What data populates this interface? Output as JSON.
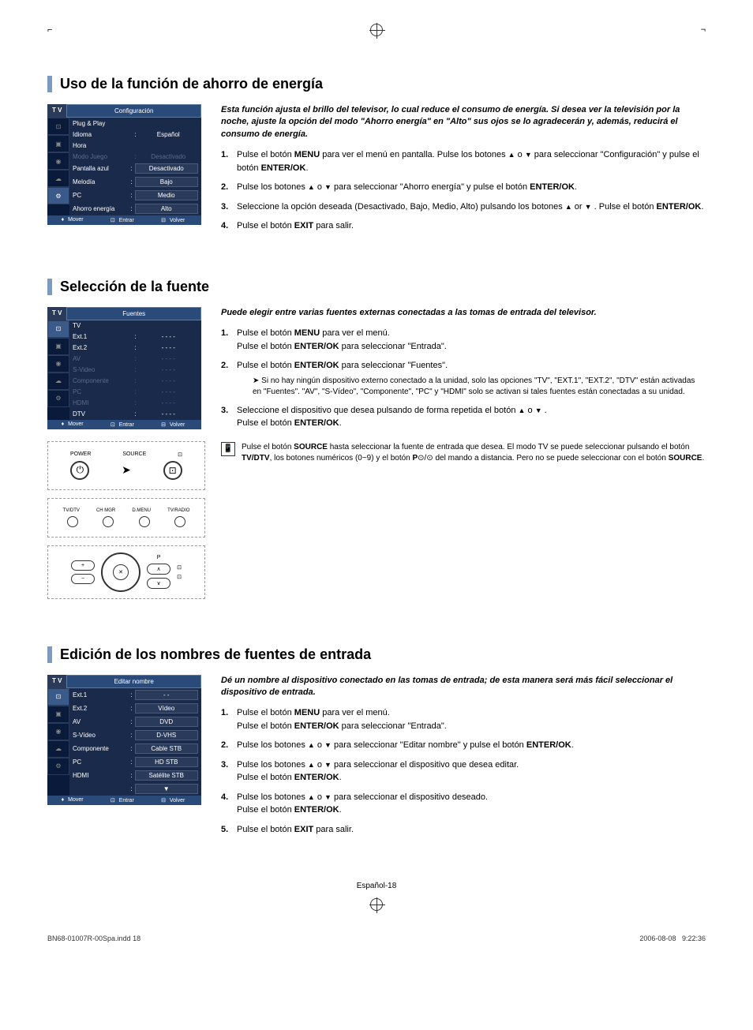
{
  "top_marks": {
    "left": "|",
    "right": "|"
  },
  "section1": {
    "title": "Uso de la función de ahorro de energía",
    "intro": "Esta función ajusta el brillo del televisor, lo cual reduce el consumo de energía. Si desea ver la televisión por la noche, ajuste la opción del modo \"Ahorro energía\" en \"Alto\" sus ojos se lo agradecerán y, además, reducirá el consumo de energía.",
    "osd": {
      "tv": "T V",
      "title": "Configuración",
      "rows": [
        {
          "label": "Plug & Play",
          "val": "",
          "dim": false
        },
        {
          "label": "Idioma",
          "val": "Español",
          "dim": false
        },
        {
          "label": "Hora",
          "val": "",
          "dim": false
        },
        {
          "label": "Modo Juego",
          "val": "Desactivado",
          "dim": true
        },
        {
          "label": "Pantalla azul",
          "val": "Desactivado",
          "boxed": true
        },
        {
          "label": "Melodía",
          "val": "Bajo",
          "boxed": true
        },
        {
          "label": "PC",
          "val": "Medio",
          "boxed": true
        },
        {
          "label": "Ahorro energía",
          "val": "Alto",
          "boxed": true
        }
      ],
      "footer": {
        "move": "Mover",
        "enter": "Entrar",
        "return": "Volver"
      }
    },
    "steps": [
      {
        "n": "1.",
        "text_parts": [
          "Pulse el botón ",
          {
            "b": "MENU"
          },
          " para ver el menú en pantalla. Pulse los botones ",
          {
            "arr": "▲"
          },
          " o ",
          {
            "arr": "▼"
          },
          " para seleccionar \"Configuración\" y pulse el botón ",
          {
            "b": "ENTER/OK"
          },
          "."
        ]
      },
      {
        "n": "2.",
        "text_parts": [
          "Pulse los botones ",
          {
            "arr": "▲"
          },
          " o ",
          {
            "arr": "▼"
          },
          " para seleccionar \"Ahorro energía\" y pulse el botón ",
          {
            "b": "ENTER/OK"
          },
          "."
        ]
      },
      {
        "n": "3.",
        "text_parts": [
          "Seleccione la opción deseada (Desactivado, Bajo, Medio, Alto) pulsando los botones ",
          {
            "arr": "▲"
          },
          " or ",
          {
            "arr": "▼"
          },
          " . Pulse el botón ",
          {
            "b": "ENTER/OK"
          },
          "."
        ]
      },
      {
        "n": "4.",
        "text_parts": [
          "Pulse el botón ",
          {
            "b": "EXIT"
          },
          " para salir."
        ]
      }
    ]
  },
  "section2": {
    "title": "Selección de la fuente",
    "intro": "Puede elegir entre varias fuentes externas conectadas a las tomas de entrada del televisor.",
    "osd": {
      "tv": "T V",
      "title": "Fuentes",
      "rows": [
        {
          "label": "TV",
          "val": "",
          "boxed": true
        },
        {
          "label": "Ext.1",
          "val": "- - - -"
        },
        {
          "label": "Ext.2",
          "val": "- - - -"
        },
        {
          "label": "AV",
          "val": "- - - -",
          "dim": true
        },
        {
          "label": "S-Video",
          "val": "- - - -",
          "dim": true
        },
        {
          "label": "Componente",
          "val": "- - - -",
          "dim": true
        },
        {
          "label": "PC",
          "val": "- - - -",
          "dim": true
        },
        {
          "label": "HDMI",
          "val": "- - - -",
          "dim": true
        },
        {
          "label": "DTV",
          "val": "- - - -"
        }
      ],
      "footer": {
        "move": "Mover",
        "enter": "Entrar",
        "return": "Volver"
      }
    },
    "remote": {
      "power": "POWER",
      "source": "SOURCE",
      "row2": [
        "TV/DTV",
        "CH MGR",
        "D.MENU",
        "TV/RADIO"
      ],
      "p_label": "P"
    },
    "steps": [
      {
        "n": "1.",
        "text_parts": [
          "Pulse el botón ",
          {
            "b": "MENU"
          },
          " para ver el menú."
        ],
        "line2_parts": [
          "Pulse el botón ",
          {
            "b": "ENTER/OK"
          },
          " para seleccionar \"Entrada\"."
        ]
      },
      {
        "n": "2.",
        "text_parts": [
          "Pulse el botón ",
          {
            "b": "ENTER/OK"
          },
          " para seleccionar \"Fuentes\"."
        ],
        "sub": "Si no hay ningún dispositivo externo conectado a la unidad, solo las opciones \"TV\", \"EXT.1\", \"EXT.2\", \"DTV\" están activadas en \"Fuentes\". \"AV\", \"S-Vídeo\", \"Componente\", \"PC\" y \"HDMI\" solo se activan si tales fuentes están conectadas a su unidad."
      },
      {
        "n": "3.",
        "text_parts": [
          "Seleccione el dispositivo que desea pulsando de forma repetida el botón ",
          {
            "arr": "▲"
          },
          " o ",
          {
            "arr": "▼"
          },
          " ."
        ],
        "line2_parts": [
          "Pulse el botón ",
          {
            "b": "ENTER/OK"
          },
          "."
        ]
      }
    ],
    "note_parts": [
      "Pulse el botón ",
      {
        "b": "SOURCE"
      },
      " hasta seleccionar la fuente de entrada que desea. El modo TV se puede seleccionar pulsando el botón ",
      {
        "b": "TV/DTV"
      },
      ", los botones numéricos (0~9) y el botón ",
      {
        "b": "P"
      },
      "⊙/⊙ del mando a distancia. Pero no se puede seleccionar con el botón ",
      {
        "b": "SOURCE"
      },
      "."
    ]
  },
  "section3": {
    "title": "Edición de los nombres de fuentes de entrada",
    "intro": "Dé un nombre al dispositivo conectado en las tomas de entrada; de esta manera será más fácil seleccionar el dispositivo de entrada.",
    "osd": {
      "tv": "T V",
      "title": "Editar nombre",
      "rows": [
        {
          "label": "Ext.1",
          "val": "- -",
          "boxed": true
        },
        {
          "label": "Ext.2",
          "val": "Vídeo",
          "boxed": true
        },
        {
          "label": "AV",
          "val": "DVD",
          "boxed": true
        },
        {
          "label": "S-Vídeo",
          "val": "D-VHS",
          "boxed": true
        },
        {
          "label": "Componente",
          "val": "Cable STB",
          "boxed": true
        },
        {
          "label": "PC",
          "val": "HD STB",
          "boxed": true
        },
        {
          "label": "HDMI",
          "val": "Satélite STB",
          "boxed": true
        },
        {
          "label": "",
          "val": "▼",
          "boxed": true
        }
      ],
      "footer": {
        "move": "Mover",
        "enter": "Entrar",
        "return": "Volver"
      }
    },
    "steps": [
      {
        "n": "1.",
        "text_parts": [
          "Pulse el botón ",
          {
            "b": "MENU"
          },
          " para ver el menú."
        ],
        "line2_parts": [
          "Pulse el botón ",
          {
            "b": "ENTER/OK"
          },
          " para seleccionar \"Entrada\"."
        ]
      },
      {
        "n": "2.",
        "text_parts": [
          "Pulse los botones ",
          {
            "arr": "▲"
          },
          " o ",
          {
            "arr": "▼"
          },
          " para seleccionar \"Editar nombre\" y pulse el botón ",
          {
            "b": "ENTER/OK"
          },
          "."
        ]
      },
      {
        "n": "3.",
        "text_parts": [
          "Pulse los botones ",
          {
            "arr": "▲"
          },
          " o ",
          {
            "arr": "▼"
          },
          " para seleccionar el dispositivo que desea editar."
        ],
        "line2_parts": [
          "Pulse el botón ",
          {
            "b": "ENTER/OK"
          },
          "."
        ]
      },
      {
        "n": "4.",
        "text_parts": [
          "Pulse los botones ",
          {
            "arr": "▲"
          },
          " o ",
          {
            "arr": "▼"
          },
          " para seleccionar el dispositivo deseado."
        ],
        "line2_parts": [
          "Pulse el botón ",
          {
            "b": "ENTER/OK"
          },
          "."
        ]
      },
      {
        "n": "5.",
        "text_parts": [
          "Pulse el botón ",
          {
            "b": "EXIT"
          },
          " para salir."
        ]
      }
    ]
  },
  "page_footer": "Español-18",
  "doc_footer": {
    "file": "BN68-01007R-00Spa.indd   18",
    "date": "2006-08-08",
    "time": "9:22:36"
  }
}
